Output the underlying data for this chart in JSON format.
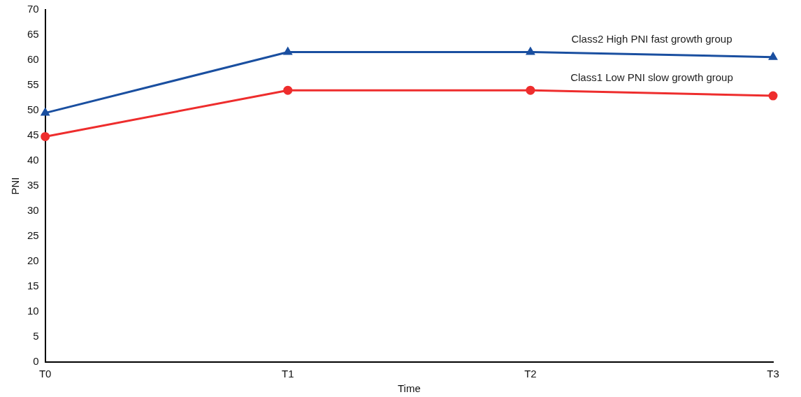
{
  "chart_data": {
    "type": "line",
    "xlabel": "Time",
    "ylabel": "PNI",
    "categories": [
      "T0",
      "T1",
      "T2",
      "T3"
    ],
    "series": [
      {
        "name": "Class2 High PNI fast growth group",
        "color": "#1a4fa0",
        "marker": "triangle",
        "values": [
          49.5,
          61.6,
          61.6,
          60.6
        ]
      },
      {
        "name": "Class1 Low PNI slow growth group",
        "color": "#ee2d2d",
        "marker": "circle",
        "values": [
          44.8,
          54.0,
          54.0,
          52.9
        ]
      }
    ],
    "ylim": [
      0,
      70
    ],
    "yticks": [
      0,
      5,
      10,
      15,
      20,
      25,
      30,
      35,
      40,
      45,
      50,
      55,
      60,
      65,
      70
    ],
    "grid": false,
    "legend": false,
    "line_style": "solid"
  }
}
